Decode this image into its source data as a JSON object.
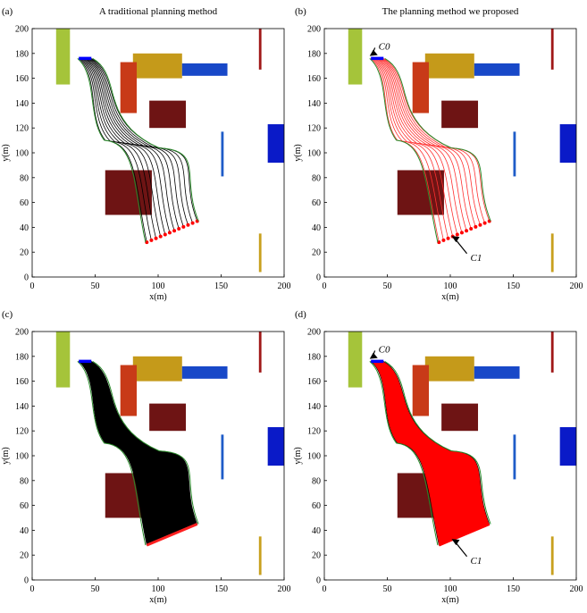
{
  "figure": {
    "panel_letters": [
      "(a)",
      "(b)",
      "(c)",
      "(d)"
    ],
    "titles": [
      "A traditional planning method",
      "The planning method we proposed",
      "",
      ""
    ]
  },
  "chart_data": [
    {
      "type": "line",
      "panel": "(a)",
      "title": "A traditional planning method",
      "xlabel": "x(m)",
      "ylabel": "y(m)",
      "xlim": [
        0,
        200
      ],
      "ylim": [
        0,
        200
      ],
      "xticks": [
        0,
        50,
        100,
        150,
        200
      ],
      "yticks": [
        0,
        20,
        40,
        60,
        80,
        100,
        120,
        140,
        160,
        180,
        200
      ],
      "grid": false,
      "start_segment": [
        [
          37,
          176
        ],
        [
          47,
          176
        ]
      ],
      "goal_segment": [
        [
          91,
          28
        ],
        [
          131,
          45
        ]
      ],
      "trajectory_count": 12,
      "trajectory_color": "#000000",
      "goal_marker_color": "#ff0000",
      "start_marker_color": "#0000ff",
      "annotations": []
    },
    {
      "type": "line",
      "panel": "(b)",
      "title": "The planning method we proposed",
      "xlabel": "x(m)",
      "ylabel": "y(m)",
      "xlim": [
        0,
        200
      ],
      "ylim": [
        0,
        200
      ],
      "xticks": [
        0,
        50,
        100,
        150,
        200
      ],
      "yticks": [
        0,
        20,
        40,
        60,
        80,
        100,
        120,
        140,
        160,
        180,
        200
      ],
      "grid": false,
      "start_segment": [
        [
          37,
          176
        ],
        [
          47,
          176
        ]
      ],
      "goal_segment": [
        [
          91,
          28
        ],
        [
          131,
          45
        ]
      ],
      "trajectory_count": 12,
      "trajectory_color": "#ff3030",
      "goal_marker_color": "#ff0000",
      "start_marker_color": "#0000ff",
      "annotations": [
        {
          "text": "C0",
          "at": [
            36,
            178
          ],
          "label": [
            43,
            186
          ]
        },
        {
          "text": "C1",
          "at": [
            101,
            33
          ],
          "label": [
            116,
            16
          ]
        }
      ]
    },
    {
      "type": "area",
      "panel": "(c)",
      "title": "",
      "xlabel": "x(m)",
      "ylabel": "y(m)",
      "xlim": [
        0,
        200
      ],
      "ylim": [
        0,
        200
      ],
      "xticks": [
        0,
        50,
        100,
        150,
        200
      ],
      "yticks": [
        0,
        20,
        40,
        60,
        80,
        100,
        120,
        140,
        160,
        180,
        200
      ],
      "grid": false,
      "start_segment": [
        [
          37,
          176
        ],
        [
          47,
          176
        ]
      ],
      "goal_segment": [
        [
          91,
          28
        ],
        [
          131,
          45
        ]
      ],
      "trajectory_count": 0,
      "fill_color": "#000000",
      "goal_marker_color": "#ff2020",
      "start_marker_color": "#0000ff",
      "annotations": []
    },
    {
      "type": "area",
      "panel": "(d)",
      "title": "",
      "xlabel": "x(m)",
      "ylabel": "y(m)",
      "xlim": [
        0,
        200
      ],
      "ylim": [
        0,
        200
      ],
      "xticks": [
        0,
        50,
        100,
        150,
        200
      ],
      "yticks": [
        0,
        20,
        40,
        60,
        80,
        100,
        120,
        140,
        160,
        180,
        200
      ],
      "grid": false,
      "start_segment": [
        [
          37,
          176
        ],
        [
          47,
          176
        ]
      ],
      "goal_segment": [
        [
          91,
          28
        ],
        [
          131,
          45
        ]
      ],
      "trajectory_count": 0,
      "fill_color": "#ff0000",
      "goal_marker_color": "#ff0000",
      "start_marker_color": "#0000ff",
      "annotations": [
        {
          "text": "C0",
          "at": [
            36,
            178
          ],
          "label": [
            43,
            186
          ]
        },
        {
          "text": "C1",
          "at": [
            101,
            33
          ],
          "label": [
            116,
            16
          ]
        }
      ]
    }
  ],
  "obstacles": [
    {
      "x": [
        19,
        30
      ],
      "y": [
        155,
        200
      ],
      "color": "#a5c43a"
    },
    {
      "x": [
        80,
        119
      ],
      "y": [
        160,
        180
      ],
      "color": "#c59a1a"
    },
    {
      "x": [
        119,
        155
      ],
      "y": [
        162,
        172
      ],
      "color": "#1848c8"
    },
    {
      "x": [
        70,
        83
      ],
      "y": [
        132,
        173
      ],
      "color": "#c83a18"
    },
    {
      "x": [
        93,
        122
      ],
      "y": [
        120,
        142
      ],
      "color": "#6e1414"
    },
    {
      "x": [
        58,
        95
      ],
      "y": [
        50,
        86
      ],
      "color": "#6e1414"
    },
    {
      "x": [
        180,
        182
      ],
      "y": [
        167,
        200
      ],
      "color": "#a01818"
    },
    {
      "x": [
        150,
        152
      ],
      "y": [
        81,
        117
      ],
      "color": "#1e5cc8"
    },
    {
      "x": [
        187,
        200
      ],
      "y": [
        92,
        123
      ],
      "color": "#0a1ac8"
    },
    {
      "x": [
        180,
        182
      ],
      "y": [
        4,
        35
      ],
      "color": "#c8a01e"
    }
  ],
  "boundary_color": "#2a8a2a"
}
